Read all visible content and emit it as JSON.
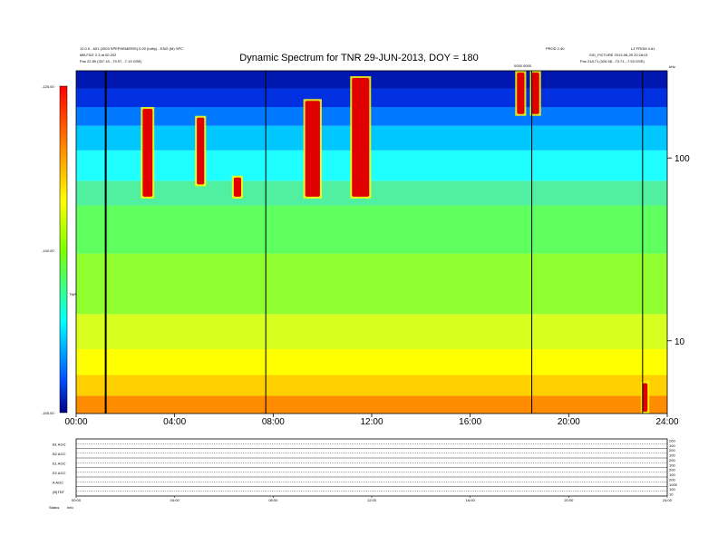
{
  "header": {
    "title": "Dynamic Spectrum for TNR 29-JUN-2013, DOY = 180",
    "left_line1": "12.0.0 - 601 (2003 SPEPHEMERIS) 0.00 (hdhy) - ENG (M) SPC",
    "left_line2": "MB-FILE 2.3 at 00.202",
    "left_line3": "Pos     22.89 (337.15, -79.97, -7.19 GSE)",
    "right_line1a": "PROD 2.40",
    "right_line1b": "LZ FROM 4.61",
    "right_line2": "SIG_FICTURE 2013-06-29 20:18:01",
    "right_line3": "Pos     218.71 (326.58, -73.71, -7.53 GSE)",
    "marker_label": "0000 0000",
    "khz_label": "kHz",
    "bottom_left_label1": "Status",
    "bottom_left_label2": "Info"
  },
  "colorbar": {
    "top_label": "-125.00",
    "mid_label": "-140.00",
    "bottom_label": "-155.00",
    "unit_label": "TNR"
  },
  "chart_data": {
    "type": "heatmap",
    "title": "Dynamic Spectrum for TNR 29-JUN-2013, DOY = 180",
    "x_label": "",
    "y_label": "kHz",
    "x_ticks": [
      "00:00",
      "04:00",
      "08:00",
      "12:00",
      "16:00",
      "20:00",
      "24:00"
    ],
    "x_range_hours": [
      0,
      24
    ],
    "y_scale": "log",
    "y_ticks": [
      "100",
      "10"
    ],
    "y_range_khz": [
      4,
      300
    ],
    "colorbar_range": [
      -155,
      -125
    ],
    "colorbar_ticks": [
      "-125.00",
      "-140.00",
      "-155.00"
    ],
    "vertical_lines_hours": [
      1.2,
      7.7,
      18.5,
      23.0
    ],
    "emission_events": [
      {
        "start_h": 2.7,
        "end_h": 3.1,
        "f_low_khz": 60,
        "f_high_khz": 190
      },
      {
        "start_h": 4.9,
        "end_h": 5.2,
        "f_low_khz": 70,
        "f_high_khz": 170
      },
      {
        "start_h": 6.4,
        "end_h": 6.7,
        "f_low_khz": 60,
        "f_high_khz": 80
      },
      {
        "start_h": 9.3,
        "end_h": 9.9,
        "f_low_khz": 60,
        "f_high_khz": 210
      },
      {
        "start_h": 11.2,
        "end_h": 11.9,
        "f_low_khz": 60,
        "f_high_khz": 280
      },
      {
        "start_h": 17.9,
        "end_h": 18.2,
        "f_low_khz": 170,
        "f_high_khz": 300
      },
      {
        "start_h": 18.5,
        "end_h": 18.8,
        "f_low_khz": 170,
        "f_high_khz": 300
      },
      {
        "start_h": 23.0,
        "end_h": 23.2,
        "f_low_khz": 4,
        "f_high_khz": 6
      }
    ],
    "bottom_panel": {
      "x_ticks": [
        "00:00",
        "04:00",
        "08:00",
        "12:00",
        "16:00",
        "20:00",
        "24:00"
      ],
      "row_labels": [
        "B1 AGC",
        "B2 AGC",
        "E1 AGC",
        "E2 AGC",
        "A AGC",
        "(B)TNT"
      ],
      "right_ticks": [
        "200",
        "100",
        "200",
        "100",
        "200",
        "100",
        "200",
        "100",
        "200",
        "1000",
        "100",
        "10"
      ]
    }
  }
}
